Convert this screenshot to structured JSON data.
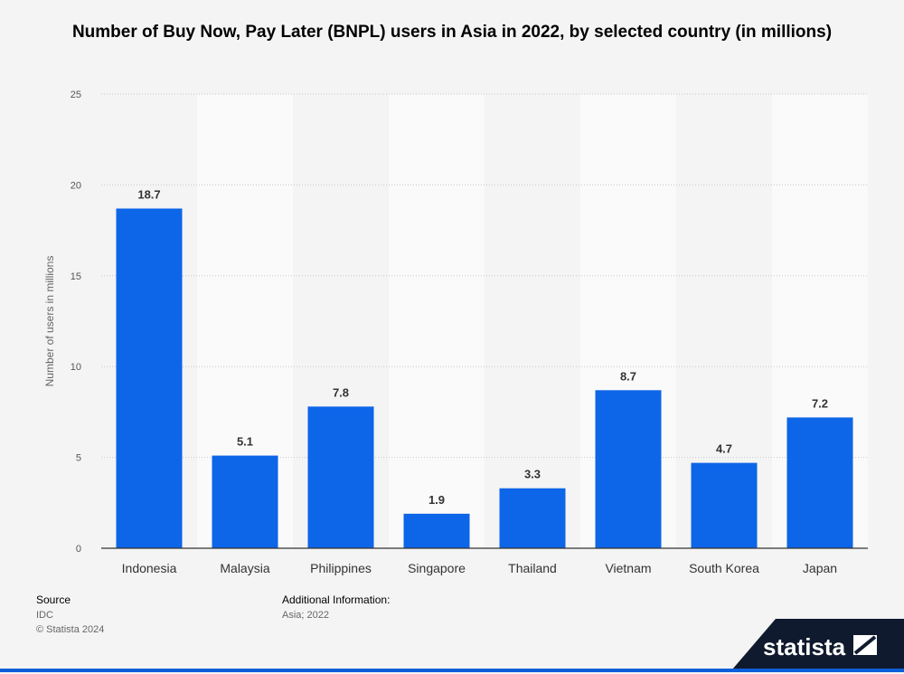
{
  "title": "Number of Buy Now, Pay Later (BNPL) users in Asia in 2022, by selected country (in millions)",
  "chart_data": {
    "type": "bar",
    "title": "Number of Buy Now, Pay Later (BNPL) users in Asia in 2022, by selected country (in millions)",
    "categories": [
      "Indonesia",
      "Malaysia",
      "Philippines",
      "Singapore",
      "Thailand",
      "Vietnam",
      "South Korea",
      "Japan"
    ],
    "values": [
      18.7,
      5.1,
      7.8,
      1.9,
      3.3,
      8.7,
      4.7,
      7.2
    ],
    "value_labels": [
      "18.7",
      "5.1",
      "7.8",
      "1.9",
      "3.3",
      "8.7",
      "4.7",
      "7.2"
    ],
    "xlabel": "",
    "ylabel": "Number of users in millions",
    "ylim": [
      0,
      25
    ],
    "yticks": [
      0,
      5,
      10,
      15,
      20,
      25
    ],
    "grid": true,
    "bar_color": "#0d65e8"
  },
  "footer": {
    "source_label": "Source",
    "source_value": "IDC",
    "copyright": "© Statista 2024",
    "additional_label": "Additional Information:",
    "additional_value": "Asia; 2022"
  },
  "logo": {
    "text": "statista",
    "bg_color": "#0f1a2e"
  }
}
